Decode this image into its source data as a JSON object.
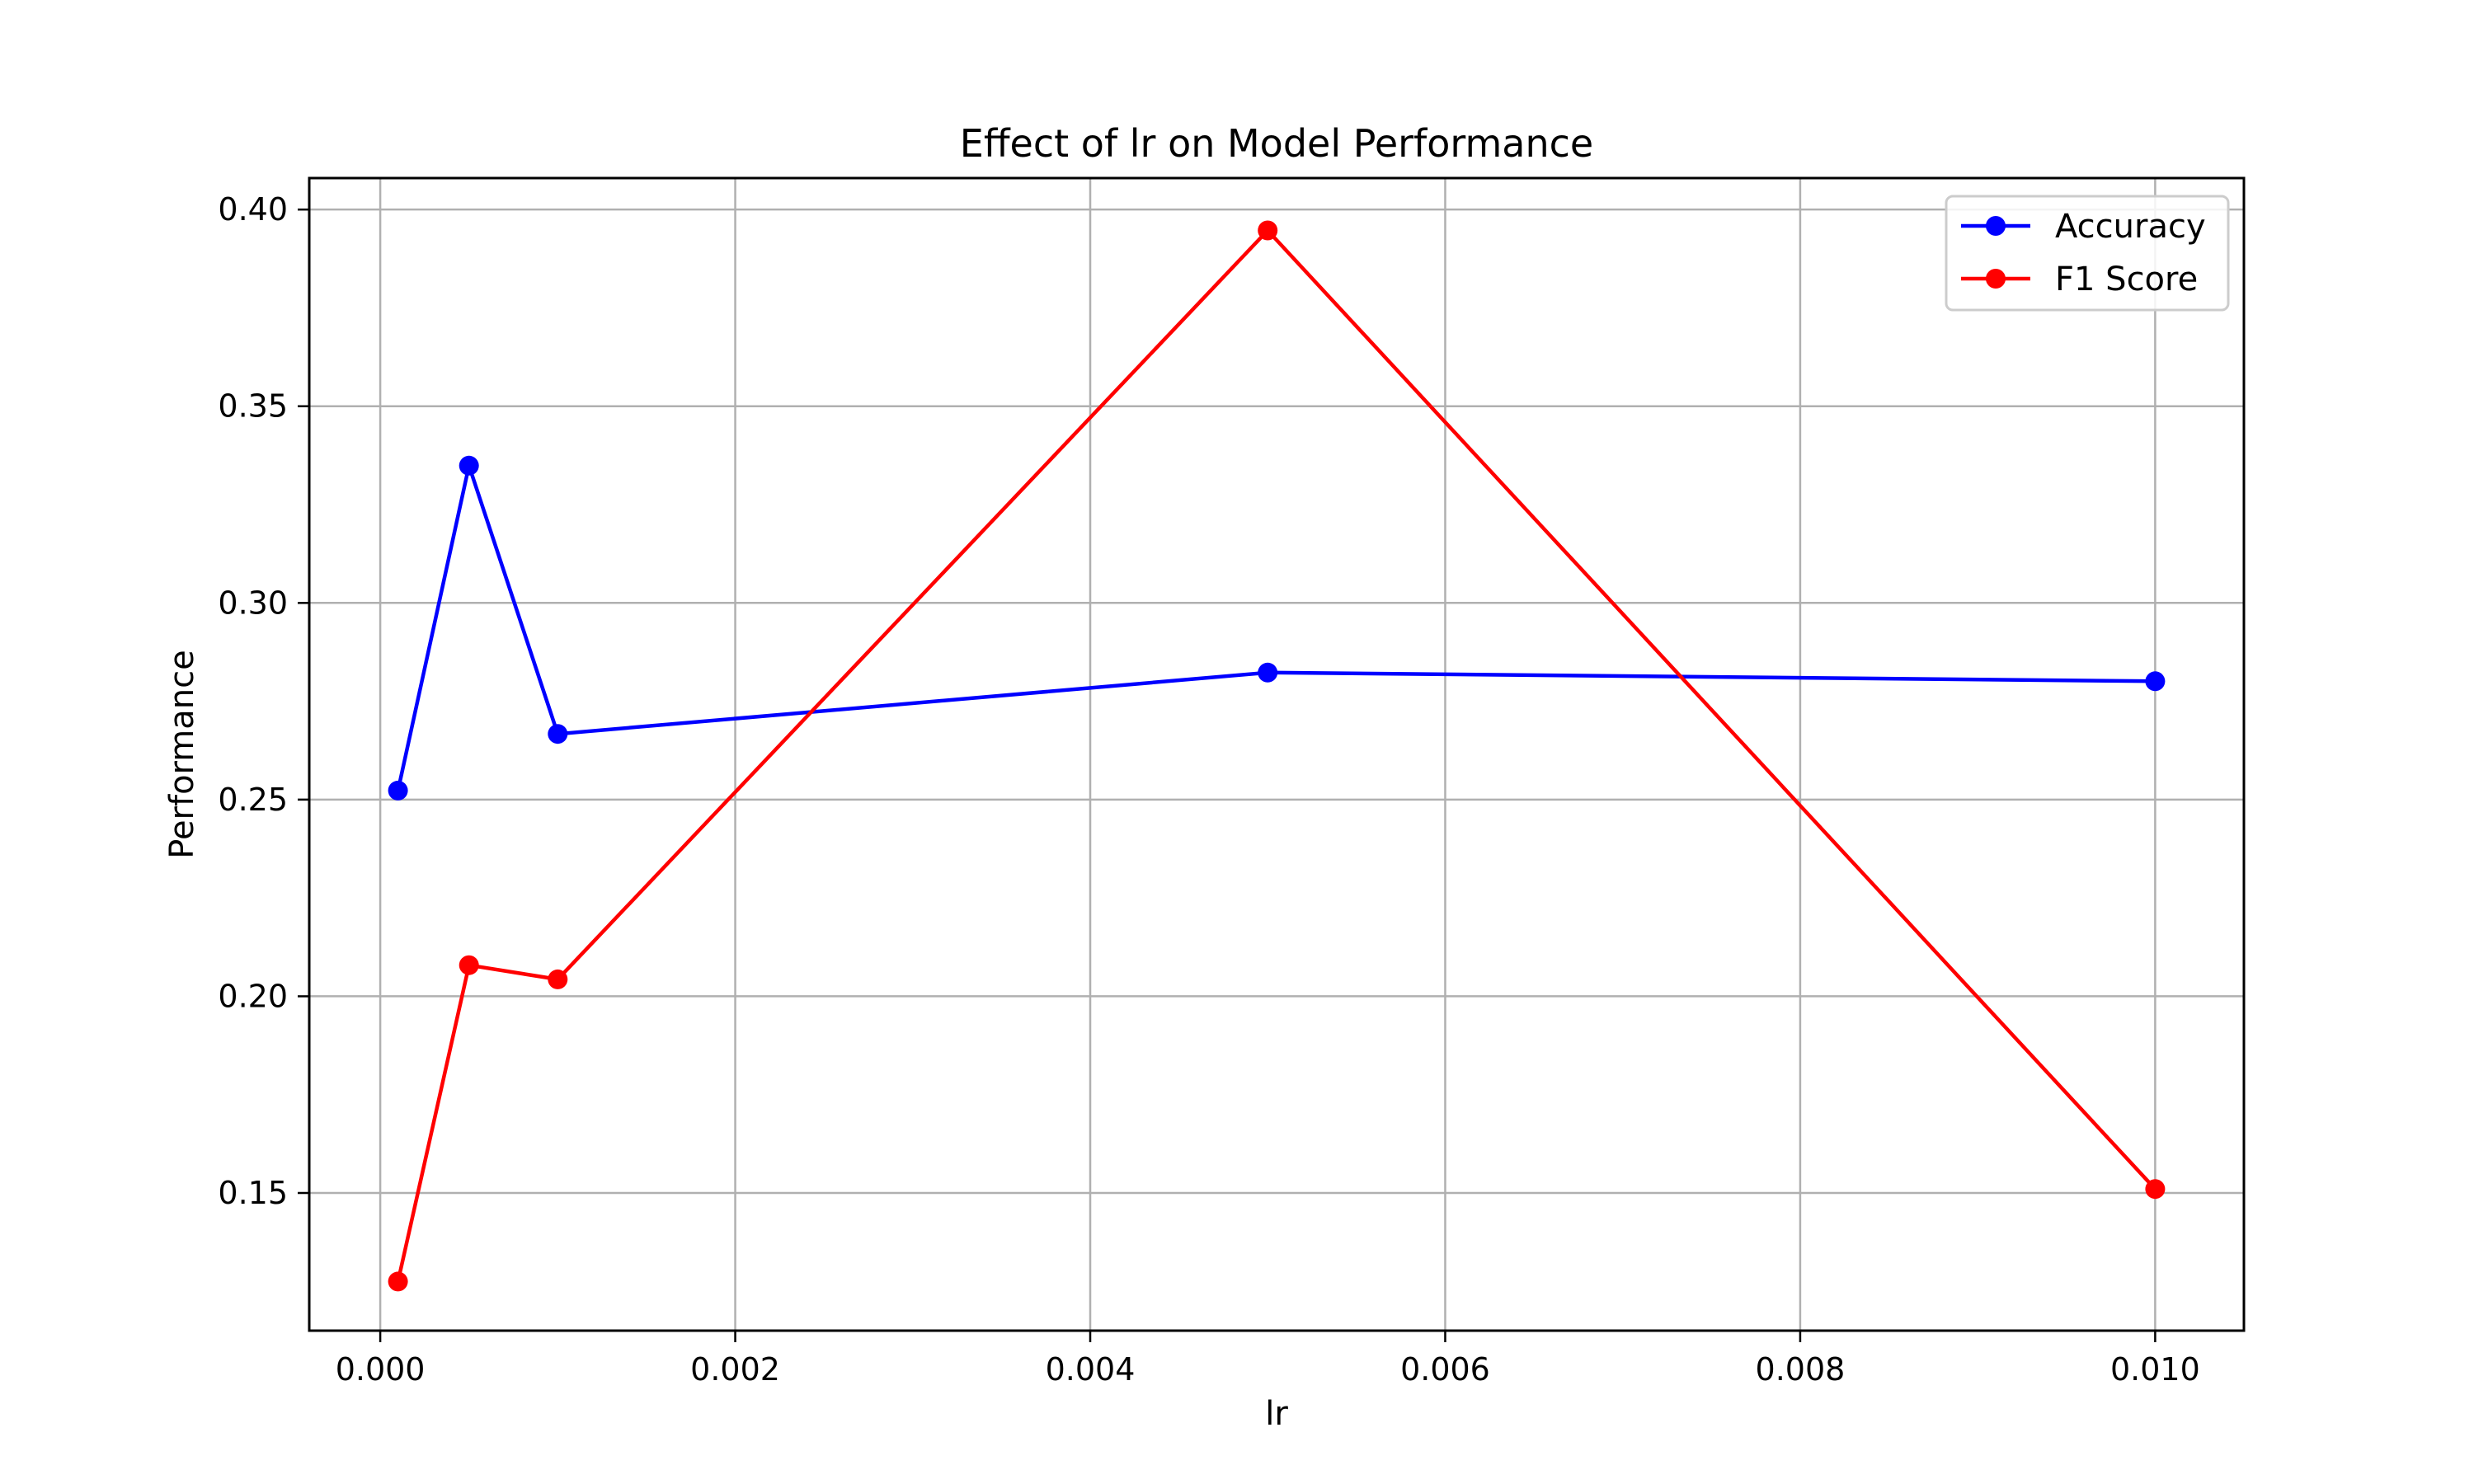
{
  "chart_data": {
    "type": "line",
    "title": "Effect of lr on Model Performance",
    "xlabel": "lr",
    "ylabel": "Performance",
    "x": [
      0.0001,
      0.0005,
      0.001,
      0.005,
      0.01
    ],
    "series": [
      {
        "name": "Accuracy",
        "color": "#0000ff",
        "values": [
          0.2523,
          0.3349,
          0.2667,
          0.2823,
          0.2801
        ]
      },
      {
        "name": "F1 Score",
        "color": "#ff0000",
        "values": [
          0.1275,
          0.2079,
          0.2043,
          0.3947,
          0.151
        ]
      }
    ],
    "xlim": [
      -0.0004,
      0.0105
    ],
    "ylim": [
      0.115,
      0.408
    ],
    "xticks": [
      0.0,
      0.002,
      0.004,
      0.006,
      0.008,
      0.01
    ],
    "xtick_labels": [
      "0.000",
      "0.002",
      "0.004",
      "0.006",
      "0.008",
      "0.010"
    ],
    "yticks": [
      0.15,
      0.2,
      0.25,
      0.3,
      0.35,
      0.4
    ],
    "ytick_labels": [
      "0.15",
      "0.20",
      "0.25",
      "0.30",
      "0.35",
      "0.40"
    ],
    "grid": true,
    "legend_position": "top-right"
  }
}
